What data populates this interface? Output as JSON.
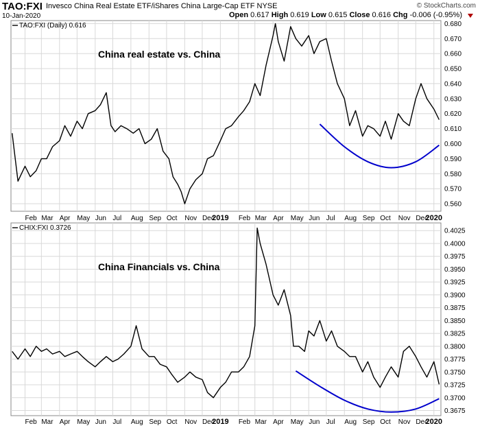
{
  "header": {
    "symbol": "TAO:FXI",
    "description": "Invesco China Real Estate ETF/iShares China Large-Cap ETF NYSE",
    "date": "10-Jan-2020",
    "brand": "© StockCharts.com",
    "open_label": "Open",
    "open": "0.617",
    "high_label": "High",
    "high": "0.619",
    "low_label": "Low",
    "low": "0.615",
    "close_label": "Close",
    "close": "0.616",
    "chg_label": "Chg",
    "chg": "-0.006 (-0.95%)"
  },
  "chart_data": [
    {
      "type": "line",
      "label": "TAO:FXI (Daily) 0.616",
      "annotation": "China real estate vs. China",
      "x_ticks": [
        "Feb",
        "Mar",
        "Apr",
        "May",
        "Jun",
        "Jul",
        "Aug",
        "Sep",
        "Oct",
        "Nov",
        "Dec",
        "2019",
        "Feb",
        "Mar",
        "Apr",
        "May",
        "Jun",
        "Jul",
        "Aug",
        "Sep",
        "Oct",
        "Nov",
        "Dec",
        "2020"
      ],
      "y_ticks": [
        "0.560",
        "0.570",
        "0.580",
        "0.590",
        "0.600",
        "0.610",
        "0.620",
        "0.630",
        "0.640",
        "0.650",
        "0.660",
        "0.670",
        "0.680"
      ],
      "ylim": [
        0.555,
        0.682
      ],
      "grid": true,
      "series_color": "#000000",
      "curve_color": "#0000cc",
      "x": [
        "2018-01-10",
        "2018-01-20",
        "2018-02-01",
        "2018-02-10",
        "2018-02-20",
        "2018-03-01",
        "2018-03-10",
        "2018-03-20",
        "2018-04-01",
        "2018-04-10",
        "2018-04-20",
        "2018-05-01",
        "2018-05-10",
        "2018-05-20",
        "2018-06-01",
        "2018-06-10",
        "2018-06-20",
        "2018-06-28",
        "2018-07-05",
        "2018-07-15",
        "2018-07-25",
        "2018-08-05",
        "2018-08-15",
        "2018-08-25",
        "2018-09-05",
        "2018-09-15",
        "2018-09-25",
        "2018-10-05",
        "2018-10-12",
        "2018-10-20",
        "2018-10-26",
        "2018-11-01",
        "2018-11-10",
        "2018-11-20",
        "2018-12-01",
        "2018-12-10",
        "2018-12-20",
        "2019-01-01",
        "2019-01-10",
        "2019-01-20",
        "2019-02-01",
        "2019-02-10",
        "2019-02-20",
        "2019-03-01",
        "2019-03-10",
        "2019-03-20",
        "2019-04-01",
        "2019-04-05",
        "2019-04-10",
        "2019-04-20",
        "2019-05-01",
        "2019-05-10",
        "2019-05-20",
        "2019-06-01",
        "2019-06-10",
        "2019-06-20",
        "2019-07-01",
        "2019-07-10",
        "2019-07-20",
        "2019-08-01",
        "2019-08-10",
        "2019-08-20",
        "2019-09-01",
        "2019-09-10",
        "2019-09-20",
        "2019-10-01",
        "2019-10-10",
        "2019-10-20",
        "2019-11-01",
        "2019-11-10",
        "2019-11-20",
        "2019-12-01",
        "2019-12-10",
        "2019-12-20",
        "2020-01-01",
        "2020-01-10"
      ],
      "values": [
        0.607,
        0.575,
        0.585,
        0.578,
        0.582,
        0.59,
        0.59,
        0.598,
        0.602,
        0.612,
        0.605,
        0.615,
        0.61,
        0.62,
        0.622,
        0.626,
        0.634,
        0.612,
        0.608,
        0.612,
        0.61,
        0.607,
        0.61,
        0.6,
        0.603,
        0.61,
        0.595,
        0.59,
        0.578,
        0.573,
        0.568,
        0.56,
        0.57,
        0.576,
        0.58,
        0.59,
        0.592,
        0.602,
        0.61,
        0.612,
        0.618,
        0.622,
        0.628,
        0.64,
        0.632,
        0.652,
        0.672,
        0.68,
        0.668,
        0.655,
        0.678,
        0.67,
        0.665,
        0.672,
        0.66,
        0.668,
        0.67,
        0.655,
        0.64,
        0.63,
        0.612,
        0.622,
        0.605,
        0.612,
        0.61,
        0.605,
        0.615,
        0.603,
        0.62,
        0.615,
        0.612,
        0.63,
        0.64,
        0.63,
        0.623,
        0.616
      ],
      "curve_x": [
        "2019-06-20",
        "2019-08-01",
        "2019-09-10",
        "2019-10-20",
        "2019-12-01",
        "2020-01-10"
      ],
      "curve_y": [
        0.613,
        0.598,
        0.588,
        0.584,
        0.588,
        0.599
      ]
    },
    {
      "type": "line",
      "label": "CHIX:FXI 0.3726",
      "annotation": "China Financials vs. China",
      "x_ticks": [
        "Feb",
        "Mar",
        "Apr",
        "May",
        "Jun",
        "Jul",
        "Aug",
        "Sep",
        "Oct",
        "Nov",
        "Dec",
        "2019",
        "Feb",
        "Mar",
        "Apr",
        "May",
        "Jun",
        "Jul",
        "Aug",
        "Sep",
        "Oct",
        "Nov",
        "Dec",
        "2020"
      ],
      "y_ticks": [
        "0.3675",
        "0.3700",
        "0.3725",
        "0.3750",
        "0.3775",
        "0.3800",
        "0.3825",
        "0.3850",
        "0.3875",
        "0.3900",
        "0.3925",
        "0.3950",
        "0.3975",
        "0.4000",
        "0.4025"
      ],
      "ylim": [
        0.3665,
        0.404
      ],
      "grid": true,
      "series_color": "#000000",
      "curve_color": "#0000cc",
      "x": [
        "2018-01-10",
        "2018-01-20",
        "2018-02-01",
        "2018-02-10",
        "2018-02-20",
        "2018-03-01",
        "2018-03-10",
        "2018-03-20",
        "2018-04-01",
        "2018-04-10",
        "2018-04-20",
        "2018-05-01",
        "2018-05-10",
        "2018-05-20",
        "2018-06-01",
        "2018-06-10",
        "2018-06-20",
        "2018-07-01",
        "2018-07-10",
        "2018-07-20",
        "2018-08-01",
        "2018-08-10",
        "2018-08-20",
        "2018-09-01",
        "2018-09-10",
        "2018-09-20",
        "2018-10-01",
        "2018-10-10",
        "2018-10-20",
        "2018-11-01",
        "2018-11-10",
        "2018-11-20",
        "2018-12-01",
        "2018-12-10",
        "2018-12-20",
        "2019-01-01",
        "2019-01-10",
        "2019-01-20",
        "2019-02-01",
        "2019-02-10",
        "2019-02-20",
        "2019-03-01",
        "2019-03-05",
        "2019-03-10",
        "2019-03-20",
        "2019-04-01",
        "2019-04-10",
        "2019-04-20",
        "2019-05-01",
        "2019-05-06",
        "2019-05-15",
        "2019-05-25",
        "2019-06-01",
        "2019-06-10",
        "2019-06-20",
        "2019-07-01",
        "2019-07-10",
        "2019-07-20",
        "2019-08-01",
        "2019-08-10",
        "2019-08-20",
        "2019-09-01",
        "2019-09-10",
        "2019-09-20",
        "2019-10-01",
        "2019-10-10",
        "2019-10-20",
        "2019-11-01",
        "2019-11-10",
        "2019-11-20",
        "2019-12-01",
        "2019-12-10",
        "2019-12-20",
        "2020-01-01",
        "2020-01-10"
      ],
      "values": [
        0.379,
        0.3775,
        0.3795,
        0.378,
        0.38,
        0.379,
        0.3795,
        0.3785,
        0.379,
        0.378,
        0.3785,
        0.379,
        0.378,
        0.377,
        0.376,
        0.377,
        0.378,
        0.377,
        0.3775,
        0.3785,
        0.38,
        0.384,
        0.3795,
        0.378,
        0.378,
        0.3765,
        0.376,
        0.3745,
        0.373,
        0.374,
        0.375,
        0.374,
        0.3735,
        0.371,
        0.37,
        0.372,
        0.373,
        0.375,
        0.375,
        0.376,
        0.378,
        0.384,
        0.403,
        0.4,
        0.396,
        0.39,
        0.388,
        0.391,
        0.386,
        0.38,
        0.38,
        0.379,
        0.383,
        0.382,
        0.385,
        0.381,
        0.383,
        0.38,
        0.379,
        0.378,
        0.378,
        0.375,
        0.377,
        0.374,
        0.372,
        0.374,
        0.376,
        0.374,
        0.379,
        0.38,
        0.378,
        0.376,
        0.374,
        0.377,
        0.3726
      ],
      "curve_x": [
        "2019-05-10",
        "2019-06-20",
        "2019-08-01",
        "2019-09-10",
        "2019-10-20",
        "2019-12-01",
        "2020-01-10"
      ],
      "curve_y": [
        0.3752,
        0.3722,
        0.3695,
        0.3678,
        0.3672,
        0.3678,
        0.3698
      ]
    }
  ]
}
